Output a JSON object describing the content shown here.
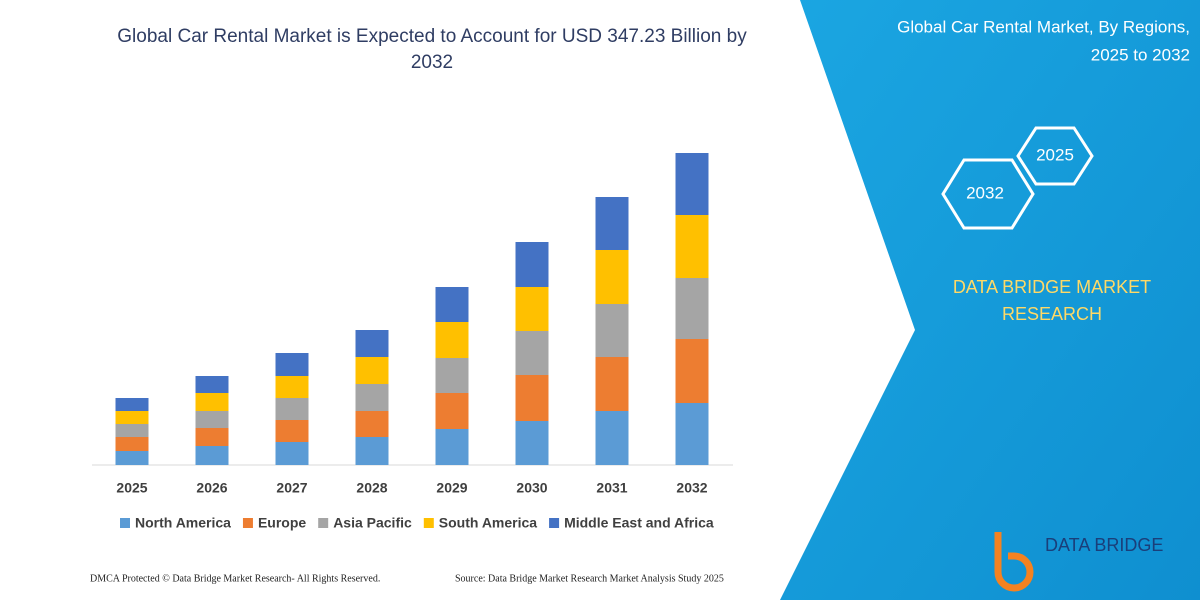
{
  "chart_data": {
    "type": "bar",
    "stacked": true,
    "title": "Global Car Rental Market is Expected to Account for USD 347.23 Billion by 2032",
    "categories": [
      "2025",
      "2026",
      "2027",
      "2028",
      "2029",
      "2030",
      "2031",
      "2032"
    ],
    "series": [
      {
        "name": "North America",
        "color": "#5b9bd5",
        "values": [
          14,
          19,
          23,
          28,
          36,
          44,
          54,
          62
        ]
      },
      {
        "name": "Europe",
        "color": "#ed7d31",
        "values": [
          14,
          18,
          22,
          26,
          36,
          46,
          54,
          64
        ]
      },
      {
        "name": "Asia Pacific",
        "color": "#a5a5a5",
        "values": [
          13,
          17,
          22,
          27,
          35,
          44,
          53,
          61
        ]
      },
      {
        "name": "South America",
        "color": "#ffc000",
        "values": [
          13,
          18,
          22,
          27,
          36,
          44,
          54,
          63
        ]
      },
      {
        "name": "Middle East and Africa",
        "color": "#4472c4",
        "values": [
          13,
          17,
          23,
          27,
          35,
          45,
          53,
          62
        ]
      }
    ]
  },
  "panel": {
    "title_line1": "Global Car Rental Market, By Regions,",
    "title_line2": "2025 to 2032",
    "hex_right": "2025",
    "hex_left": "2032",
    "brand_line1": "DATA BRIDGE MARKET",
    "brand_line2": "RESEARCH"
  },
  "footer": {
    "left": "DMCA Protected © Data Bridge Market Research-  All Rights Reserved.",
    "right": "Source: Data Bridge Market Research  Market Analysis Study 2025",
    "logo": "DATA BRIDGE"
  }
}
